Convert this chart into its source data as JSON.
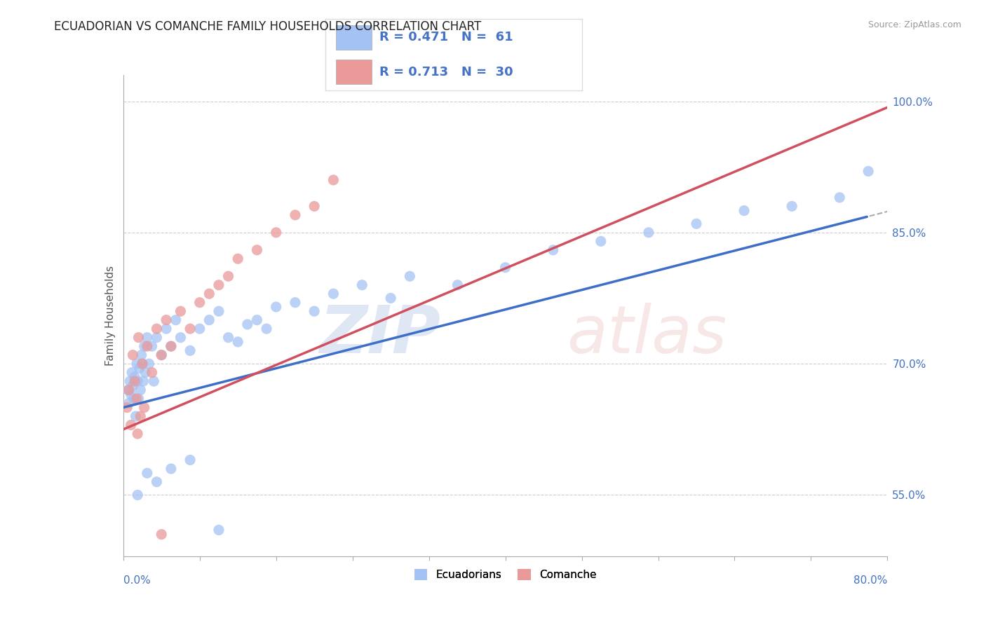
{
  "title": "ECUADORIAN VS COMANCHE FAMILY HOUSEHOLDS CORRELATION CHART",
  "source": "Source: ZipAtlas.com",
  "ylabel": "Family Households",
  "right_yticks": [
    55.0,
    70.0,
    85.0,
    100.0
  ],
  "xlim": [
    0.0,
    80.0
  ],
  "ylim": [
    48.0,
    103.0
  ],
  "blue_R": 0.471,
  "blue_N": 61,
  "pink_R": 0.713,
  "pink_N": 30,
  "blue_color": "#a4c2f4",
  "pink_color": "#ea9999",
  "blue_line_color": "#3d6fc8",
  "pink_line_color": "#d05060",
  "legend_color": "#4472c4",
  "blue_scatter_x": [
    0.5,
    0.6,
    0.7,
    0.8,
    0.9,
    1.0,
    1.1,
    1.2,
    1.3,
    1.4,
    1.5,
    1.6,
    1.7,
    1.8,
    1.9,
    2.0,
    2.1,
    2.2,
    2.3,
    2.5,
    2.7,
    3.0,
    3.2,
    3.5,
    4.0,
    4.5,
    5.0,
    5.5,
    6.0,
    7.0,
    8.0,
    9.0,
    10.0,
    11.0,
    12.0,
    13.0,
    14.0,
    15.0,
    16.0,
    18.0,
    20.0,
    22.0,
    25.0,
    28.0,
    30.0,
    35.0,
    40.0,
    45.0,
    50.0,
    55.0,
    60.0,
    65.0,
    70.0,
    75.0,
    78.0,
    1.5,
    2.5,
    3.5,
    5.0,
    7.0,
    10.0
  ],
  "blue_scatter_y": [
    67.0,
    65.5,
    68.0,
    66.5,
    69.0,
    67.5,
    66.0,
    68.5,
    64.0,
    70.0,
    68.0,
    66.0,
    69.5,
    67.0,
    71.0,
    70.0,
    68.0,
    72.0,
    69.0,
    73.0,
    70.0,
    72.0,
    68.0,
    73.0,
    71.0,
    74.0,
    72.0,
    75.0,
    73.0,
    71.5,
    74.0,
    75.0,
    76.0,
    73.0,
    72.5,
    74.5,
    75.0,
    74.0,
    76.5,
    77.0,
    76.0,
    78.0,
    79.0,
    77.5,
    80.0,
    79.0,
    81.0,
    83.0,
    84.0,
    85.0,
    86.0,
    87.5,
    88.0,
    89.0,
    92.0,
    55.0,
    57.5,
    56.5,
    58.0,
    59.0,
    51.0
  ],
  "pink_scatter_x": [
    0.4,
    0.6,
    0.8,
    1.0,
    1.2,
    1.4,
    1.6,
    1.8,
    2.0,
    2.5,
    3.0,
    3.5,
    4.0,
    4.5,
    5.0,
    6.0,
    7.0,
    8.0,
    9.0,
    10.0,
    11.0,
    12.0,
    14.0,
    16.0,
    18.0,
    20.0,
    22.0,
    1.5,
    2.2,
    4.0
  ],
  "pink_scatter_y": [
    65.0,
    67.0,
    63.0,
    71.0,
    68.0,
    66.0,
    73.0,
    64.0,
    70.0,
    72.0,
    69.0,
    74.0,
    71.0,
    75.0,
    72.0,
    76.0,
    74.0,
    77.0,
    78.0,
    79.0,
    80.0,
    82.0,
    83.0,
    85.0,
    87.0,
    88.0,
    91.0,
    62.0,
    65.0,
    50.5
  ]
}
